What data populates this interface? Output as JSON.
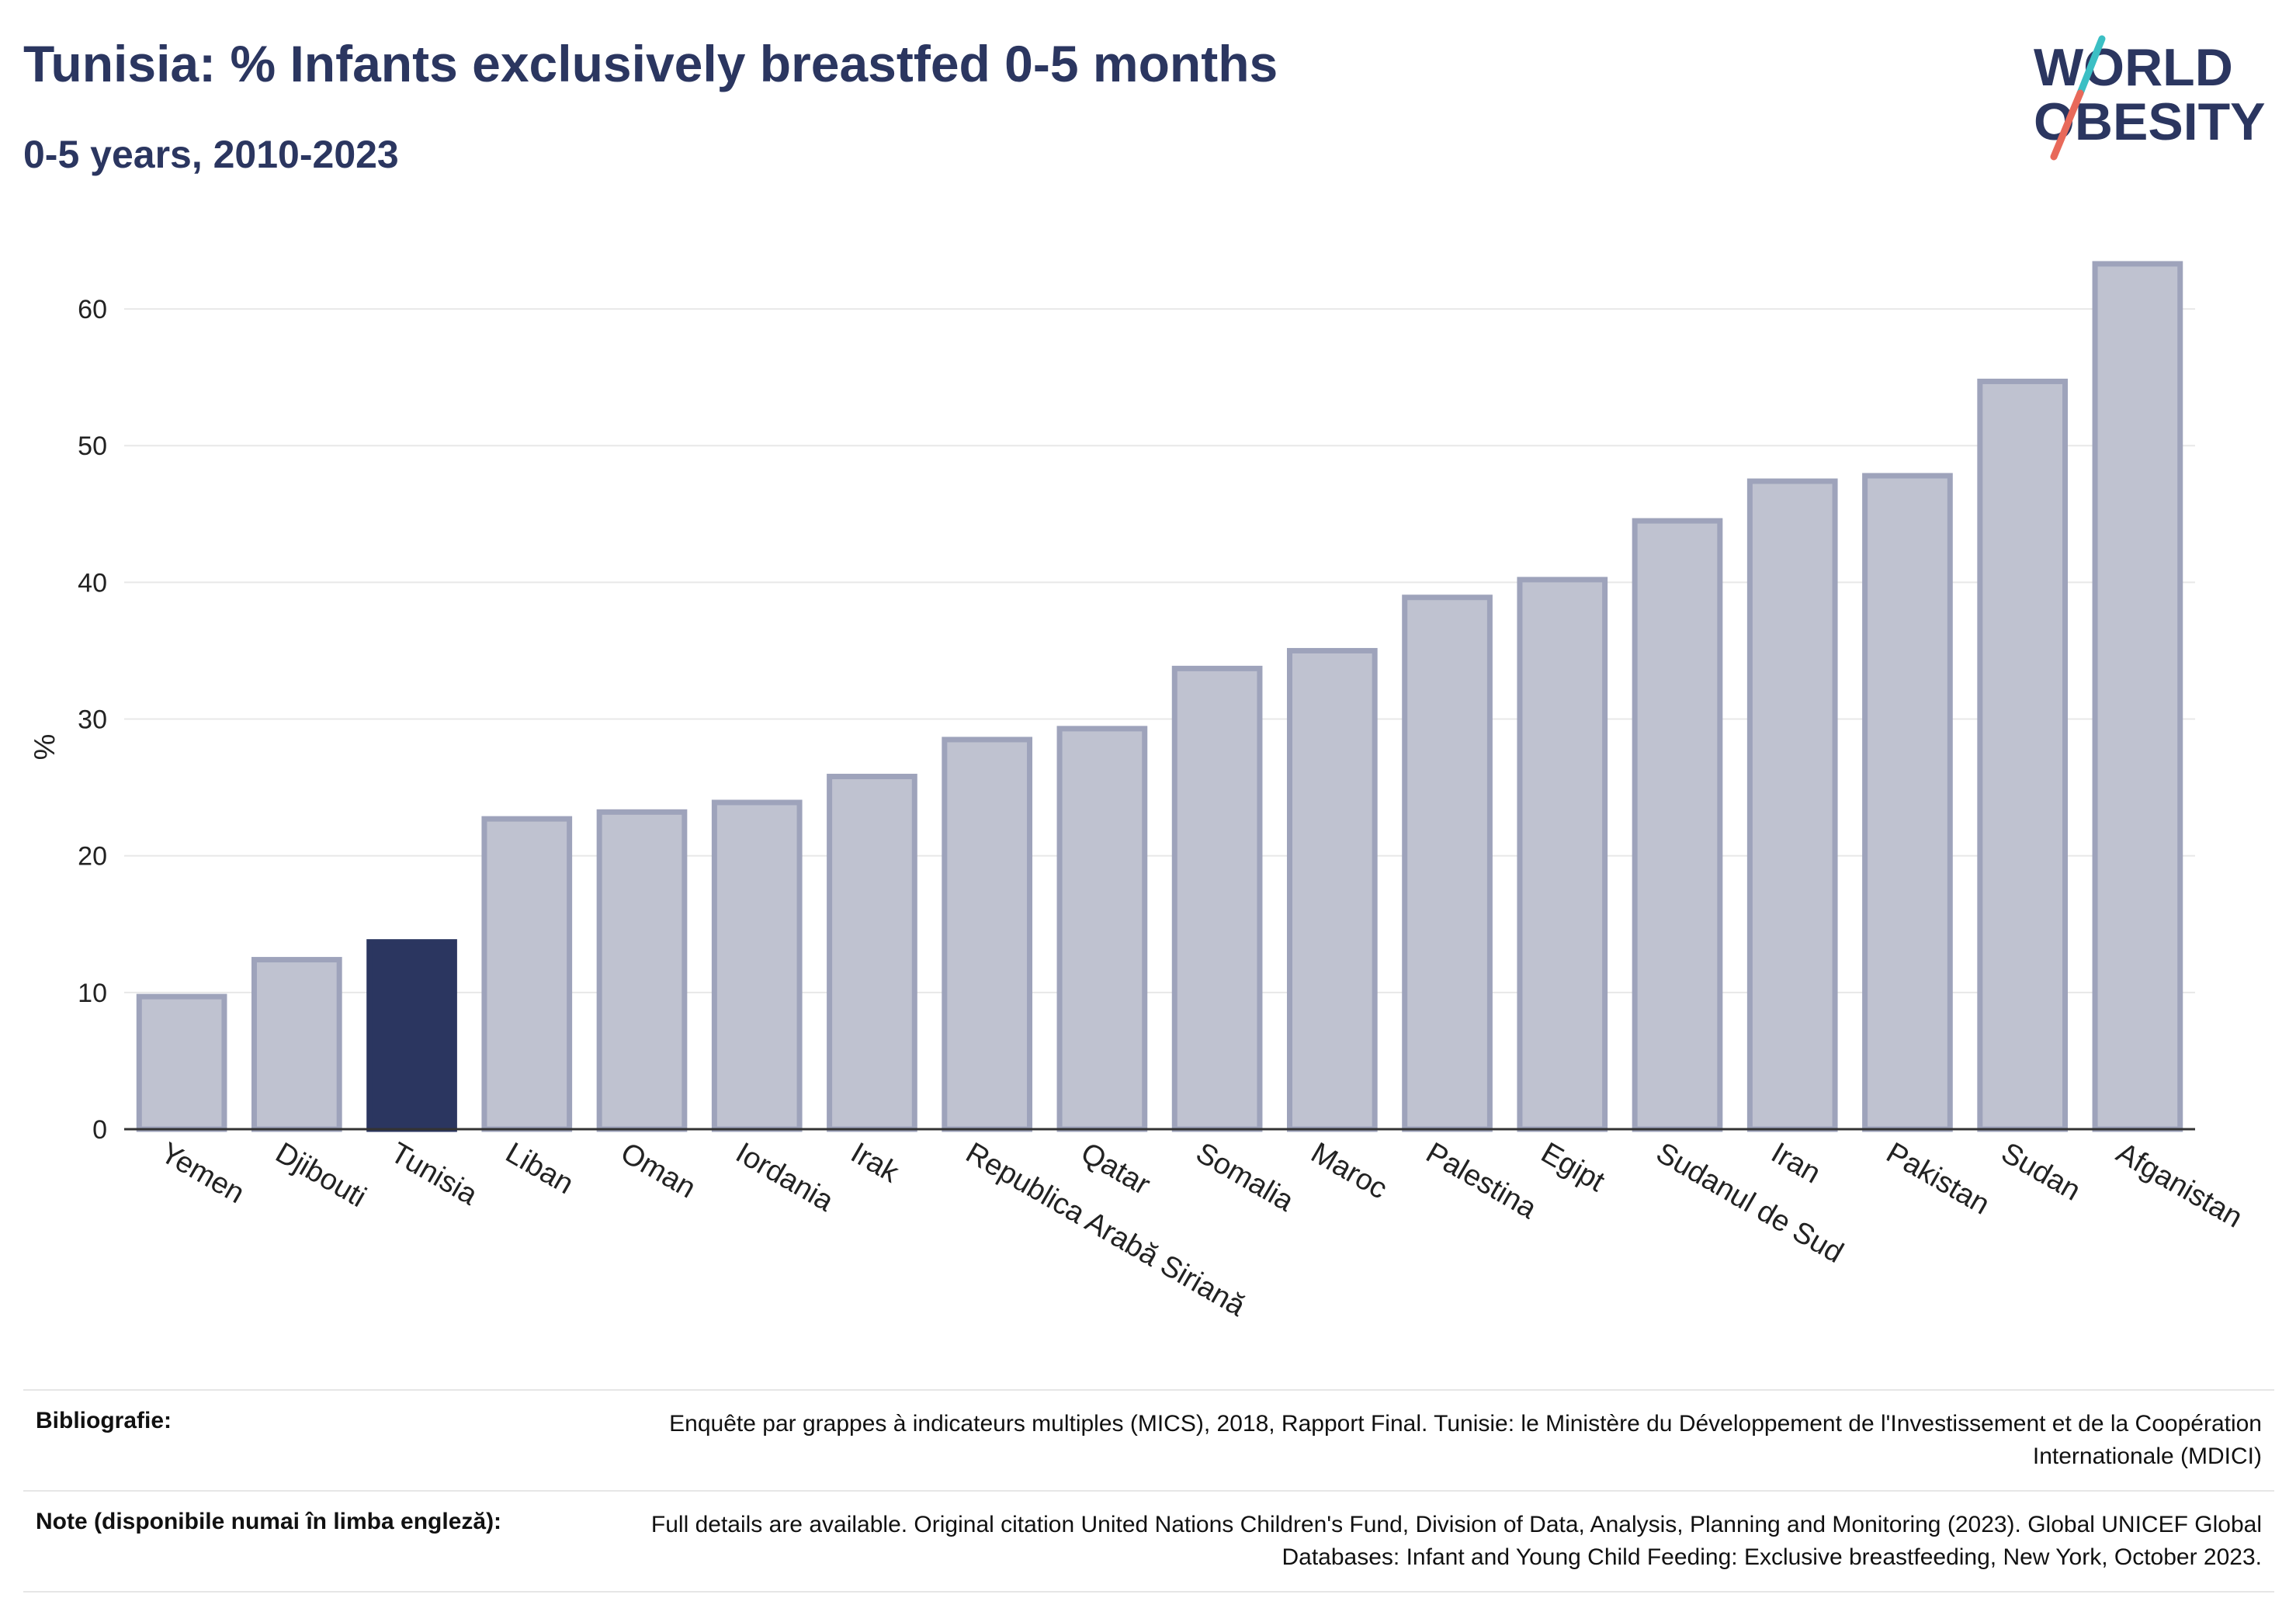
{
  "header": {
    "title": "Tunisia: % Infants exclusively breastfed 0-5 months",
    "subtitle": "0-5 years, 2010-2023"
  },
  "logo": {
    "line1": "WORLD",
    "line2": "OBESITY",
    "accent_teal": "#3bbfc4",
    "accent_coral": "#e8695a"
  },
  "colors": {
    "highlight": "#2b3660",
    "bar_fill": "#bfc2d0",
    "bar_stroke": "#9ea3bb",
    "grid": "#e8e8e8",
    "axis": "#333333"
  },
  "chart_data": {
    "type": "bar",
    "title": "Tunisia: % Infants exclusively breastfed 0-5 months",
    "subtitle": "0-5 years, 2010-2023",
    "xlabel": "",
    "ylabel": "%",
    "ylim": [
      0,
      65
    ],
    "yticks": [
      0,
      10,
      20,
      30,
      40,
      50,
      60
    ],
    "grid": true,
    "legend": "none",
    "highlight": "Tunisia",
    "categories": [
      "Yemen",
      "Djibouti",
      "Tunisia",
      "Liban",
      "Oman",
      "Iordania",
      "Irak",
      "Republica Arabă Siriană",
      "Qatar",
      "Somalia",
      "Maroc",
      "Palestina",
      "Egipt",
      "Sudanul de Sud",
      "Iran",
      "Pakistan",
      "Sudan",
      "Afganistan"
    ],
    "values": [
      9.7,
      12.4,
      13.7,
      22.7,
      23.2,
      23.9,
      25.8,
      28.5,
      29.3,
      33.7,
      35.0,
      38.9,
      40.2,
      44.5,
      47.4,
      47.8,
      54.7,
      63.3
    ]
  },
  "notes": [
    {
      "label": "Bibliografie:",
      "text": "Enquête par grappes à indicateurs multiples (MICS), 2018, Rapport Final. Tunisie: le Ministère du Développement de l'Investissement et de la Coopération Internationale (MDICI)"
    },
    {
      "label": "Note (disponibile numai în limba engleză):",
      "text": "Full details are available. Original citation United Nations Children's Fund, Division of Data, Analysis, Planning and Monitoring (2023). Global UNICEF Global Databases: Infant and Young Child Feeding: Exclusive breastfeeding, New York, October 2023."
    }
  ]
}
